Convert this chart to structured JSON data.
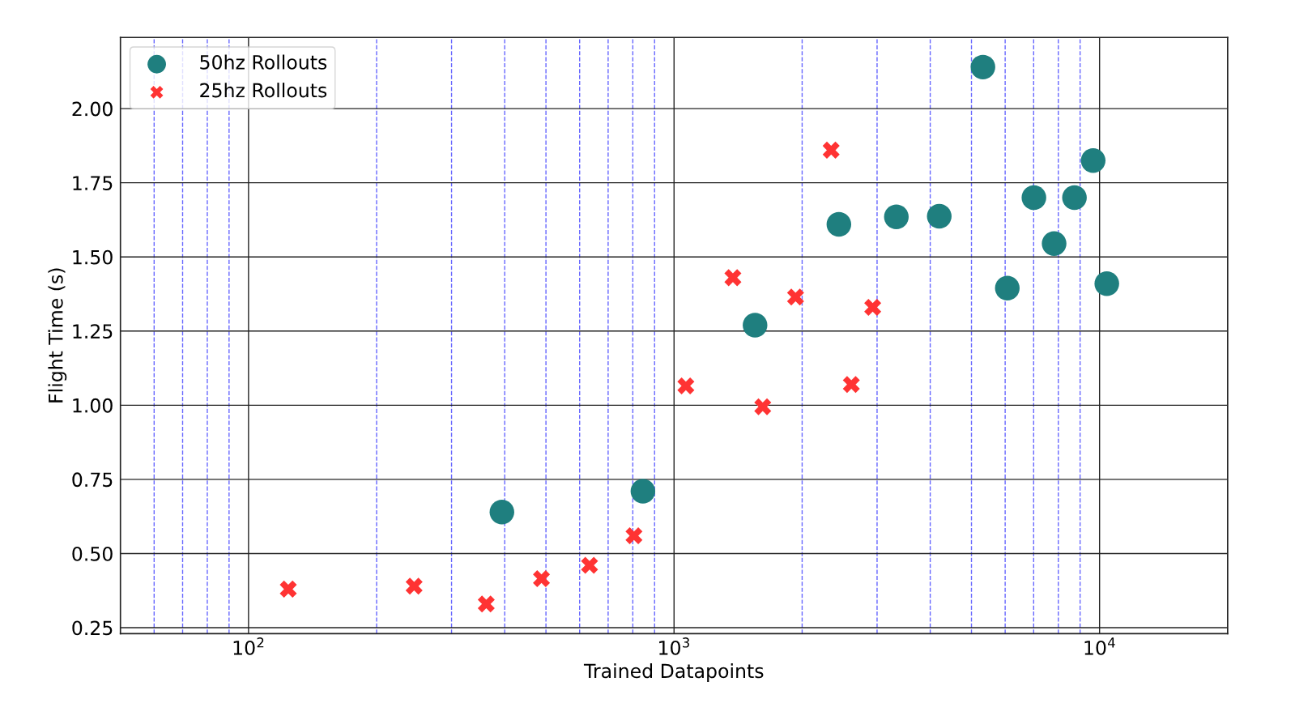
{
  "chart_data": {
    "type": "scatter",
    "xlabel": "Trained Datapoints",
    "ylabel": "Flight Time (s)",
    "log": "x",
    "grid": true,
    "legend": "top left",
    "xlim": [
      50,
      20000
    ],
    "ylim": [
      0.23,
      2.24
    ],
    "xticks": [
      {
        "value": 60,
        "label": null
      },
      {
        "value": 70,
        "label": null
      },
      {
        "value": 80,
        "label": null
      },
      {
        "value": 90,
        "label": null
      },
      {
        "value": 100,
        "label": "10$^{2}$"
      },
      {
        "value": 200,
        "label": null
      },
      {
        "value": 300,
        "label": null
      },
      {
        "value": 400,
        "label": null
      },
      {
        "value": 500,
        "label": null
      },
      {
        "value": 600,
        "label": null
      },
      {
        "value": 700,
        "label": null
      },
      {
        "value": 800,
        "label": null
      },
      {
        "value": 900,
        "label": null
      },
      {
        "value": 1000,
        "label": "10$^{3}$"
      },
      {
        "value": 2000,
        "label": null
      },
      {
        "value": 3000,
        "label": null
      },
      {
        "value": 4000,
        "label": null
      },
      {
        "value": 5000,
        "label": null
      },
      {
        "value": 6000,
        "label": null
      },
      {
        "value": 7000,
        "label": null
      },
      {
        "value": 8000,
        "label": null
      },
      {
        "value": 9000,
        "label": null
      },
      {
        "value": 10000,
        "label": "10$^{4}$"
      }
    ],
    "yticks": [
      0.25,
      {
        "value": 0.5,
        "label": "0.50"
      },
      0.75,
      {
        "value": 1.0,
        "label": "1.00"
      },
      1.25,
      {
        "value": 1.5,
        "label": "1.50"
      },
      1.75,
      {
        "value": 2.0,
        "label": "2.00"
      }
    ],
    "series": [
      {
        "name": "50hz Rollouts",
        "color": "#1f7f7f",
        "marker": "circle",
        "x": [
          394,
          845,
          1550,
          2440,
          3330,
          4200,
          5320,
          6070,
          7010,
          7820,
          8730,
          9660,
          10400
        ],
        "values": [
          0.64,
          0.71,
          1.27,
          1.61,
          1.635,
          1.637,
          2.14,
          1.395,
          1.7,
          1.545,
          1.7,
          1.825,
          1.41
        ]
      },
      {
        "name": "25hz Rollouts",
        "color": "#ff3333",
        "marker": "cross",
        "x": [
          124,
          245,
          362,
          488,
          633,
          805,
          1066,
          1375,
          1616,
          1930,
          2340,
          2610,
          2930
        ],
        "values": [
          0.38,
          0.39,
          0.33,
          0.415,
          0.46,
          0.56,
          1.065,
          1.43,
          0.995,
          1.365,
          1.86,
          1.07,
          1.33
        ]
      }
    ]
  }
}
